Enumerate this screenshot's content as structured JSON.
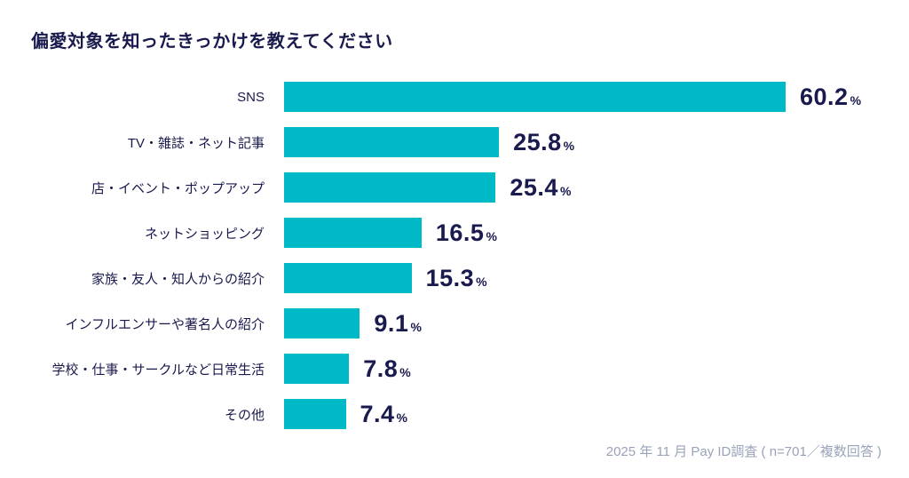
{
  "title": "偏愛対象を知ったきっかけを教えてください",
  "source": "2025 年 11 月 Pay ID調査 ( n=701／複数回答 )",
  "colors": {
    "bar": "#00b9c6",
    "text_navy": "#191a4d",
    "text_gray": "#98a2b8",
    "background": "#ffffff"
  },
  "chart_data": {
    "type": "bar",
    "orientation": "horizontal",
    "title": "偏愛対象を知ったきっかけを教えてください",
    "categories": [
      "SNS",
      "TV・雑誌・ネット記事",
      "店・イベント・ポップアップ",
      "ネットショッピング",
      "家族・友人・知人からの紹介",
      "インフルエンサーや著名人の紹介",
      "学校・仕事・サークルなど日常生活",
      "その他"
    ],
    "values": [
      60.2,
      25.8,
      25.4,
      16.5,
      15.3,
      9.1,
      7.8,
      7.4
    ],
    "unit": "%",
    "xlabel": "",
    "ylabel": "",
    "xlim": [
      0,
      65
    ],
    "grid": false,
    "legend": false,
    "value_labels": "end-of-bar",
    "annotation": "2025 年 11 月 Pay ID調査 ( n=701／複数回答 )"
  }
}
